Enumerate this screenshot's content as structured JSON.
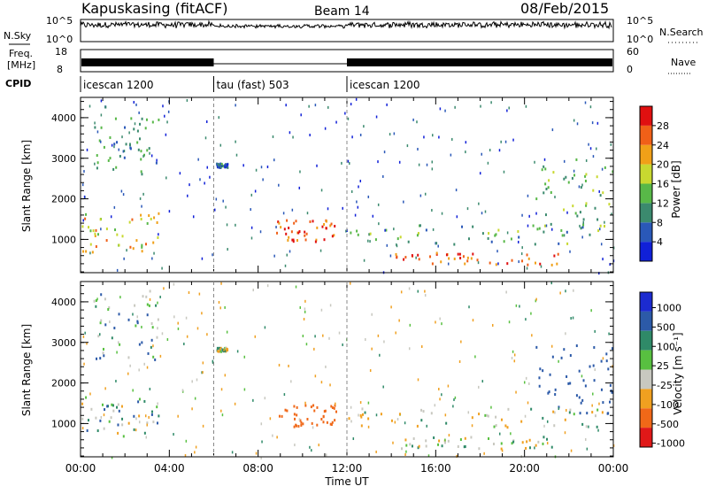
{
  "header": {
    "station": "Kapuskasing (fitACF)",
    "beam": "Beam 14",
    "date": "08/Feb/2015"
  },
  "top_panels": {
    "nsky_label": "N.Sky",
    "nsky_ticks": [
      "10^5",
      "10^0"
    ],
    "nsearch_label": "N.Search",
    "nsearch_ticks": [
      "10^5",
      "10^0"
    ],
    "freq_label_line1": "Freq.",
    "freq_label_line2": "[MHz]",
    "freq_ticks": [
      "18",
      "8"
    ],
    "nave_label": "Nave",
    "nave_ticks": [
      "60",
      "0"
    ],
    "cpid_label": "CPID",
    "cpid_segments": [
      {
        "label": "icescan 1200",
        "start": 0,
        "end": 6
      },
      {
        "label": "tau (fast) 503",
        "start": 6,
        "end": 12
      },
      {
        "label": "icescan 1200",
        "start": 12,
        "end": 24
      }
    ]
  },
  "axes": {
    "ylabel": "Slant Range [km]",
    "xlabel": "Time UT",
    "x_ticks": [
      "00:00",
      "04:00",
      "08:00",
      "12:00",
      "16:00",
      "20:00",
      "00:00"
    ],
    "y_ticks": [
      "1000",
      "2000",
      "3000",
      "4000"
    ]
  },
  "power_scale": {
    "label": "Power [dB]",
    "ticks": [
      "4",
      "8",
      "12",
      "16",
      "20",
      "24",
      "28"
    ],
    "colors": [
      "#1020d8",
      "#2a58b8",
      "#3b8a6e",
      "#58b848",
      "#c8d830",
      "#f0a018",
      "#f06018",
      "#e01010"
    ]
  },
  "velocity_scale": {
    "label": "Velocity [m s⁻¹]",
    "ticks": [
      "1000",
      "500",
      "100",
      "25",
      "-25",
      "-100",
      "-500",
      "-1000"
    ],
    "colors": [
      "#1c2bd0",
      "#2c5aa8",
      "#2f8a68",
      "#58c040",
      "#c8c8c0",
      "#f0a020",
      "#f06818",
      "#e01818"
    ]
  },
  "chart_data": {
    "type": "heatmap",
    "x_range_hours": [
      0,
      24
    ],
    "y_range_km": [
      180,
      4500
    ],
    "panels": [
      "Power",
      "Velocity"
    ],
    "scatter_regions": [
      {
        "t": [
          0.0,
          3.5
        ],
        "r": [
          700,
          1700
        ],
        "power_db": 20,
        "velocity": 50
      },
      {
        "t": [
          0.5,
          3.5
        ],
        "r": [
          2600,
          4300
        ],
        "power_db": 10,
        "velocity": 80
      },
      {
        "t": [
          6.1,
          6.6
        ],
        "r": [
          2800,
          2900
        ],
        "power_db": 8,
        "velocity": 0
      },
      {
        "t": [
          8.8,
          11.5
        ],
        "r": [
          950,
          1500
        ],
        "power_db": 26,
        "velocity": -250
      },
      {
        "t": [
          12.0,
          23.5
        ],
        "r": [
          900,
          1400
        ],
        "power_db": 12,
        "velocity": 0
      },
      {
        "t": [
          14.0,
          21.5
        ],
        "r": [
          400,
          700
        ],
        "power_db": 26,
        "velocity": 0
      },
      {
        "t": [
          20.5,
          24.0
        ],
        "r": [
          1200,
          3000
        ],
        "power_db": 14,
        "velocity": 200
      }
    ]
  }
}
